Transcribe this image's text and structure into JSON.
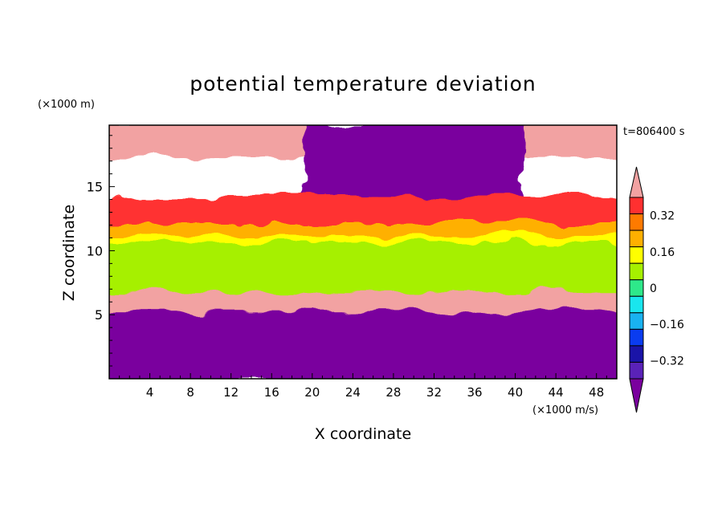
{
  "chart_data": {
    "type": "heatmap",
    "title": "potential temperature deviation",
    "xlabel": "X coordinate",
    "ylabel": "Z coordinate",
    "x_unit": "(×1000 m/s)",
    "y_unit": "(×1000 m)",
    "time_label": "t=806400 s",
    "xlim": [
      0,
      50
    ],
    "ylim": [
      0,
      19.8
    ],
    "x_ticks": [
      4,
      8,
      12,
      16,
      20,
      24,
      28,
      32,
      36,
      40,
      44,
      48
    ],
    "y_ticks": [
      5,
      10,
      15
    ],
    "colorbar": {
      "levels": [
        -0.48,
        -0.4,
        -0.32,
        -0.24,
        -0.16,
        -0.08,
        0,
        0.08,
        0.16,
        0.24,
        0.32,
        0.4,
        0.48
      ],
      "tick_labels": [
        "0.32",
        "0.16",
        "0",
        "−0.16",
        "−0.32"
      ],
      "tick_values": [
        0.32,
        0.16,
        0,
        -0.16,
        -0.32
      ],
      "colors": [
        "#7a009e",
        "#5a22b8",
        "#1a14a8",
        "#0a3cf0",
        "#19b2f0",
        "#19e6ee",
        "#2ee88a",
        "#a6f000",
        "#ffff00",
        "#ffb000",
        "#ff7a00",
        "#ff3030",
        "#f2a2a2"
      ]
    },
    "bands": [
      {
        "z": [
          17.6,
          19.8
        ],
        "x": [
          0,
          50
        ],
        "value": 0.5
      },
      {
        "z": [
          14.0,
          19.8
        ],
        "x": [
          20,
          40
        ],
        "value": -0.5
      },
      {
        "z": [
          12.0,
          14.0
        ],
        "x": [
          0,
          50
        ],
        "value": 0.35
      },
      {
        "z": [
          11.0,
          12.0
        ],
        "x": [
          0,
          50
        ],
        "value": 0.2
      },
      {
        "z": [
          10.4,
          11.0
        ],
        "x": [
          0,
          50
        ],
        "value": 0.1
      },
      {
        "z": [
          6.5,
          10.4
        ],
        "x": [
          0,
          50
        ],
        "value": 0.03
      },
      {
        "z": [
          5.0,
          6.5
        ],
        "x": [
          0,
          50
        ],
        "value": 0.5
      },
      {
        "z": [
          0,
          5.0
        ],
        "x": [
          0,
          50
        ],
        "value": -0.5
      }
    ]
  }
}
